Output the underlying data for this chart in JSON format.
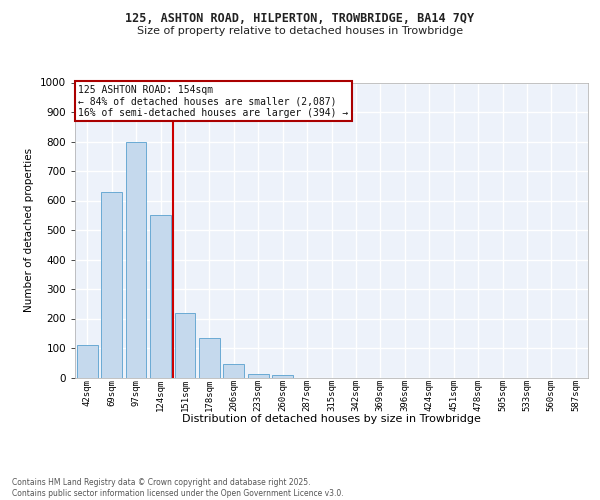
{
  "title_line1": "125, ASHTON ROAD, HILPERTON, TROWBRIDGE, BA14 7QY",
  "title_line2": "Size of property relative to detached houses in Trowbridge",
  "xlabel": "Distribution of detached houses by size in Trowbridge",
  "ylabel": "Number of detached properties",
  "bar_color": "#c5d9ed",
  "bar_edge_color": "#6aaad4",
  "background_color": "#edf2fa",
  "grid_color": "#ffffff",
  "categories": [
    "42sqm",
    "69sqm",
    "97sqm",
    "124sqm",
    "151sqm",
    "178sqm",
    "206sqm",
    "233sqm",
    "260sqm",
    "287sqm",
    "315sqm",
    "342sqm",
    "369sqm",
    "396sqm",
    "424sqm",
    "451sqm",
    "478sqm",
    "505sqm",
    "533sqm",
    "560sqm",
    "587sqm"
  ],
  "values": [
    110,
    630,
    800,
    550,
    220,
    135,
    45,
    12,
    7,
    0,
    0,
    0,
    0,
    0,
    0,
    0,
    0,
    0,
    0,
    0,
    0
  ],
  "ylim": [
    0,
    1000
  ],
  "yticks": [
    0,
    100,
    200,
    300,
    400,
    500,
    600,
    700,
    800,
    900,
    1000
  ],
  "property_label": "125 ASHTON ROAD: 154sqm",
  "annotation_line1": "← 84% of detached houses are smaller (2,087)",
  "annotation_line2": "16% of semi-detached houses are larger (394) →",
  "vline_x": 3.5,
  "annotation_border_color": "#aa0000",
  "footer_line1": "Contains HM Land Registry data © Crown copyright and database right 2025.",
  "footer_line2": "Contains public sector information licensed under the Open Government Licence v3.0."
}
